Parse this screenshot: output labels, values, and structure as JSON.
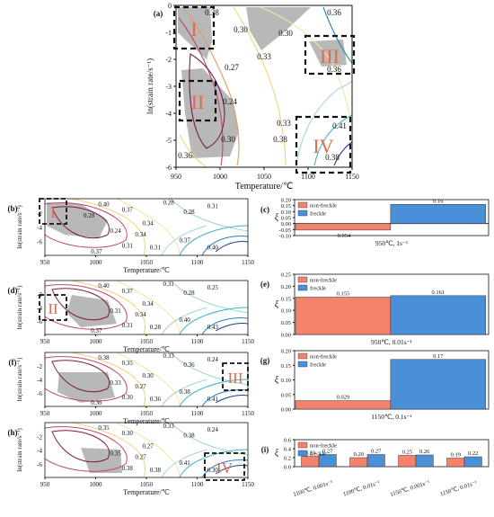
{
  "panel_a": {
    "tag": "(a)",
    "ylabel": "ln(strain rate/s⁻¹)",
    "xlabel": "Temperature/℃",
    "xticks": [
      "950",
      "1000",
      "1050",
      "1100",
      "1150"
    ],
    "yticks": [
      "0",
      "-1",
      "-2",
      "-3",
      "-4",
      "-5",
      "-6"
    ],
    "contour_labels": [
      "0.38",
      "0.36",
      "0.30",
      "0.30",
      "0.27",
      "0.33",
      "0.36",
      "0.24",
      "0.33",
      "0.38",
      "0.41",
      "0.30",
      "0.36",
      "0.38"
    ],
    "regions": [
      "I",
      "II",
      "III",
      "IV"
    ]
  },
  "maps": [
    {
      "tag": "(b)",
      "region": "I",
      "ylabel": "ln(strain rate/s⁻¹)",
      "xlabel": "Temperature/℃",
      "xticks": [
        "950",
        "1000",
        "1050",
        "1100",
        "1150"
      ],
      "yticks": [
        "-2",
        "-4",
        "-6"
      ],
      "labels": [
        "0.40",
        "0.37",
        "0.34",
        "0.28",
        "0.28",
        "0.31",
        "0.34",
        "0.24",
        "0.31",
        "0.37",
        "0.40",
        "0.31",
        "0.37",
        "0.28"
      ]
    },
    {
      "tag": "(d)",
      "region": "II",
      "ylabel": "ln(strain rate/s⁻¹)",
      "xlabel": "Temperature/℃",
      "xticks": [
        "950",
        "1000",
        "1050",
        "1100",
        "1150"
      ],
      "yticks": [
        "-2",
        "-4",
        "-6"
      ],
      "labels": [
        "0.40",
        "0.37",
        "0.34",
        "0.31",
        "0.28",
        "0.25",
        "0.34",
        "0.31",
        "0.28",
        "0.40",
        "0.43",
        "0.31",
        "0.37"
      ]
    },
    {
      "tag": "(f)",
      "region": "III",
      "ylabel": "ln(strain rate/s⁻¹)",
      "xlabel": "Temperature/℃",
      "xticks": [
        "950",
        "1000",
        "1050",
        "1100",
        "1150"
      ],
      "yticks": [
        "-2",
        "-4",
        "-6"
      ],
      "labels": [
        "0.38",
        "0.35",
        "0.30",
        "0.33",
        "0.36",
        "0.24",
        "0.27",
        "0.33",
        "0.36",
        "0.38",
        "0.41",
        "0.30",
        "0.36"
      ]
    },
    {
      "tag": "(h)",
      "region": "IV",
      "ylabel": "ln(strain rate/s⁻¹)",
      "xlabel": "Temperature/℃",
      "xticks": [
        "950",
        "1000",
        "1050",
        "1100",
        "1150"
      ],
      "yticks": [
        "-2",
        "-4",
        "-6"
      ],
      "labels": [
        "0.35",
        "0.30",
        "0.27",
        "0.33",
        "0.38",
        "0.24",
        "0.27",
        "0.35",
        "0.38",
        "0.41",
        "0.30",
        "0.38"
      ]
    }
  ],
  "chart_data": [
    {
      "tag": "(c)",
      "type": "bar",
      "categories": [
        "non-freckle",
        "freckle"
      ],
      "values": [
        -0.054,
        0.16
      ],
      "value_labels": [
        "-0.054",
        "0.16"
      ],
      "xlabel": "950℃, 1s⁻¹",
      "ylabel": "ξ",
      "ylim": [
        -0.1,
        0.2
      ],
      "yticks": [
        "0.20",
        "0.15",
        "0.10",
        "0.05",
        "0.00",
        "-0.05",
        "-0.10"
      ],
      "legend": [
        "non-freckle",
        "freckle"
      ]
    },
    {
      "tag": "(e)",
      "type": "bar",
      "categories": [
        "non-freckle",
        "freckle"
      ],
      "values": [
        0.155,
        0.161
      ],
      "value_labels": [
        "0.155",
        "0.161"
      ],
      "xlabel": "950℃, 0.01s⁻¹",
      "ylabel": "ξ",
      "ylim": [
        0,
        0.25
      ],
      "yticks": [
        "0.25",
        "0.20",
        "0.15",
        "0.10",
        "0.05",
        "0.00"
      ],
      "legend": [
        "non-freckle",
        "freckle"
      ]
    },
    {
      "tag": "(g)",
      "type": "bar",
      "categories": [
        "non-freckle",
        "freckle"
      ],
      "values": [
        0.029,
        0.17
      ],
      "value_labels": [
        "0.029",
        "0.17"
      ],
      "xlabel": "1150℃, 0.1s⁻¹",
      "ylabel": "ξ",
      "ylim": [
        0,
        0.2
      ],
      "yticks": [
        "0.20",
        "0.15",
        "0.10",
        "0.05",
        "0.00"
      ],
      "legend": [
        "non-freckle",
        "freckle"
      ]
    },
    {
      "tag": "(i)",
      "type": "bar",
      "categories": [
        "1100℃, 0.001s⁻¹",
        "1100℃, 0.01s⁻¹",
        "1150℃, 0.001s⁻¹",
        "1150℃, 0.01s⁻¹"
      ],
      "series": [
        {
          "name": "non-freckle",
          "values": [
            0.23,
            0.2,
            0.25,
            0.19
          ]
        },
        {
          "name": "freckle",
          "values": [
            0.27,
            0.27,
            0.26,
            0.22
          ]
        }
      ],
      "value_labels": [
        [
          "0.23",
          "0.20",
          "0.25",
          "0.19"
        ],
        [
          "0.27",
          "0.27",
          "0.26",
          "0.22"
        ]
      ],
      "ylabel": "ξ",
      "ylim": [
        0,
        0.6
      ],
      "yticks": [
        "0.6",
        "0.4",
        "0.2",
        "0.0"
      ],
      "legend": [
        "non-freckle",
        "freckle"
      ]
    }
  ],
  "colors": {
    "nonfreckle": "#f4826d",
    "freckle": "#4a90d9",
    "shade": "#b8b8b8"
  }
}
